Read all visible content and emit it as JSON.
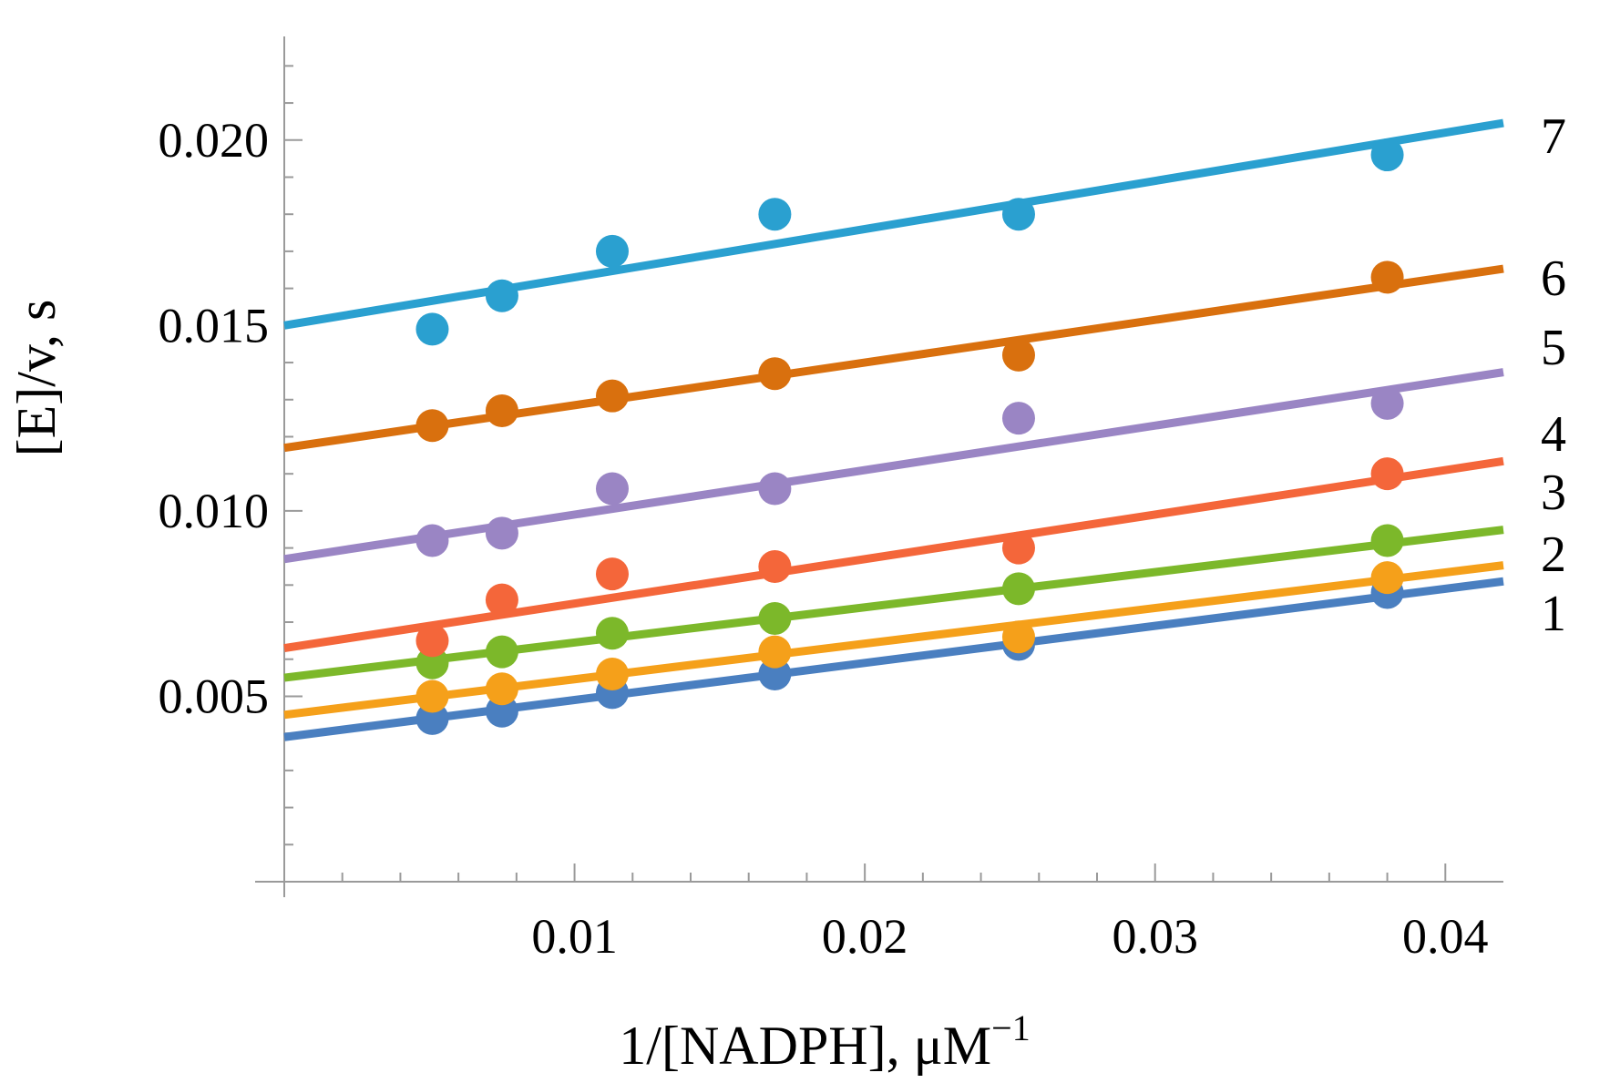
{
  "chart_data": {
    "type": "scatter",
    "xlabel": "1/[NADPH], μM",
    "xlabel_sup": "−1",
    "ylabel": "[E]/v, s",
    "xlim": [
      0,
      0.042
    ],
    "ylim": [
      0,
      0.0225
    ],
    "xticks": [
      0.01,
      0.02,
      0.03,
      0.04
    ],
    "xtick_labels": [
      "0.01",
      "0.02",
      "0.03",
      "0.04"
    ],
    "yticks": [
      0.005,
      0.01,
      0.015,
      0.02
    ],
    "ytick_labels": [
      "0.005",
      "0.010",
      "0.015",
      "0.020"
    ],
    "grid": false,
    "x": [
      0.0051,
      0.0075,
      0.0113,
      0.0169,
      0.0253,
      0.038
    ],
    "series": [
      {
        "name": "1",
        "color": "#4a7fc0",
        "values": [
          0.0044,
          0.0046,
          0.0051,
          0.0056,
          0.0064,
          0.0078
        ],
        "fit": {
          "intercept": 0.0039,
          "slope": 0.1
        }
      },
      {
        "name": "2",
        "color": "#f5a01a",
        "values": [
          0.005,
          0.0052,
          0.0056,
          0.0062,
          0.0066,
          0.0082
        ],
        "fit": {
          "intercept": 0.0045,
          "slope": 0.096
        }
      },
      {
        "name": "3",
        "color": "#7cb82a",
        "values": [
          0.0059,
          0.0062,
          0.0067,
          0.0071,
          0.0079,
          0.0092
        ],
        "fit": {
          "intercept": 0.0055,
          "slope": 0.095
        }
      },
      {
        "name": "4",
        "color": "#f4663a",
        "values": [
          0.0065,
          0.0076,
          0.0083,
          0.0085,
          0.009,
          0.011
        ],
        "fit": {
          "intercept": 0.0063,
          "slope": 0.12
        }
      },
      {
        "name": "5",
        "color": "#9a85c4",
        "values": [
          0.0092,
          0.0094,
          0.0106,
          0.0106,
          0.0125,
          0.0129
        ],
        "fit": {
          "intercept": 0.0087,
          "slope": 0.12
        }
      },
      {
        "name": "6",
        "color": "#d9700e",
        "values": [
          0.0123,
          0.0127,
          0.0131,
          0.0137,
          0.0142,
          0.0163
        ],
        "fit": {
          "intercept": 0.0117,
          "slope": 0.115
        }
      },
      {
        "name": "7",
        "color": "#2aa0d0",
        "values": [
          0.0149,
          0.0158,
          0.017,
          0.018,
          0.018,
          0.0196
        ],
        "fit": {
          "intercept": 0.015,
          "slope": 0.13
        }
      }
    ]
  }
}
